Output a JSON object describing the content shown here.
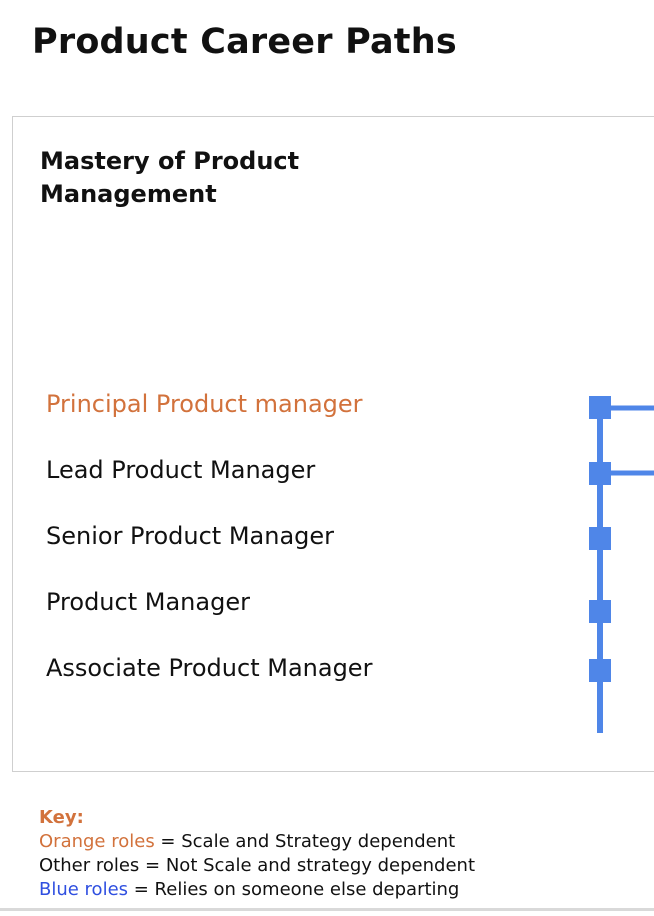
{
  "page": {
    "title": "Product Career Paths"
  },
  "panel": {
    "title": "Mastery of Product Management",
    "roles": [
      {
        "label": "Principal Product manager",
        "color": "#d2723c"
      },
      {
        "label": "Lead Product Manager",
        "color": "#111111"
      },
      {
        "label": "Senior Product Manager",
        "color": "#111111"
      },
      {
        "label": "Product Manager",
        "color": "#111111"
      },
      {
        "label": "Associate Product Manager",
        "color": "#111111"
      }
    ]
  },
  "key": {
    "title": "Key:",
    "items": [
      {
        "term": "Orange roles",
        "desc": " = Scale and Strategy dependent",
        "color": "#d2723c"
      },
      {
        "term": "Other roles",
        "desc": " = Not Scale and strategy dependent",
        "color": "#111111"
      },
      {
        "term": "Blue roles",
        "desc": " = Relies on someone else departing",
        "color": "#2f4fe0"
      }
    ]
  },
  "colors": {
    "ladder": "#4f86e8",
    "accent_orange": "#d2723c",
    "blue_text": "#2f4fe0"
  }
}
